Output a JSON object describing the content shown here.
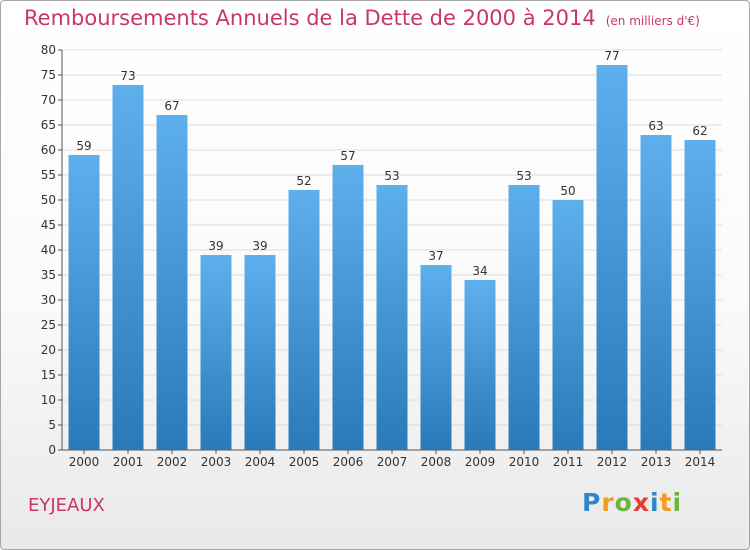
{
  "title": "Remboursements Annuels de la Dette de 2000 à 2014",
  "subtitle": "(en milliers d'€)",
  "commune": "EYJEAUX",
  "brand": {
    "letters": [
      "P",
      "r",
      "o",
      "x",
      "i",
      "t",
      "i"
    ],
    "colors": [
      "#2f87c9",
      "#f29b1d",
      "#6cb33f",
      "#e63c2f",
      "#2f87c9",
      "#f29b1d",
      "#6cb33f"
    ]
  },
  "chart_data": {
    "type": "bar",
    "title": "Remboursements Annuels de la Dette de 2000 à 2014",
    "xlabel": "",
    "ylabel": "",
    "categories": [
      "2000",
      "2001",
      "2002",
      "2003",
      "2004",
      "2005",
      "2006",
      "2007",
      "2008",
      "2009",
      "2010",
      "2011",
      "2012",
      "2013",
      "2014"
    ],
    "values": [
      59,
      73,
      67,
      39,
      39,
      52,
      57,
      53,
      37,
      34,
      53,
      50,
      77,
      63,
      62
    ],
    "value_labels": [
      "59",
      "73",
      "67",
      "39",
      "39",
      "52",
      "57",
      "53",
      "37",
      "34",
      "53",
      "50",
      "77",
      "63",
      "62"
    ],
    "ylim": [
      0,
      80
    ],
    "yticks": [
      0,
      5,
      10,
      15,
      20,
      25,
      30,
      35,
      40,
      45,
      50,
      55,
      60,
      65,
      70,
      75,
      80
    ],
    "ytick_labels": [
      "0",
      "5",
      "10",
      "15",
      "20",
      "25",
      "30",
      "35",
      "40",
      "45",
      "50",
      "55",
      "60",
      "65",
      "70",
      "75",
      "80"
    ],
    "grid": true,
    "colors": {
      "bar_top": "#5eb0ec",
      "bar_bottom": "#2a79b8",
      "grid": "#dddddd",
      "axis": "#555555"
    }
  }
}
